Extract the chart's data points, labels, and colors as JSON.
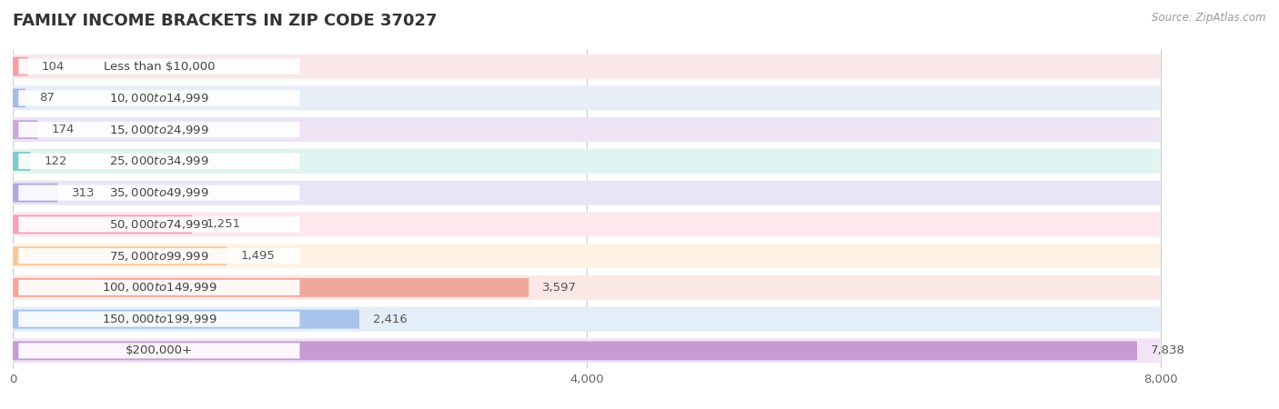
{
  "title": "FAMILY INCOME BRACKETS IN ZIP CODE 37027",
  "source": "Source: ZipAtlas.com",
  "categories": [
    "Less than $10,000",
    "$10,000 to $14,999",
    "$15,000 to $24,999",
    "$25,000 to $34,999",
    "$35,000 to $49,999",
    "$50,000 to $74,999",
    "$75,000 to $99,999",
    "$100,000 to $149,999",
    "$150,000 to $199,999",
    "$200,000+"
  ],
  "values": [
    104,
    87,
    174,
    122,
    313,
    1251,
    1495,
    3597,
    2416,
    7838
  ],
  "bar_colors": [
    "#F2A0A4",
    "#A8BAE8",
    "#C8AADC",
    "#80CCCA",
    "#B0AADC",
    "#F2A0BC",
    "#F8C89A",
    "#F0A89C",
    "#A8C4EC",
    "#C89AD4"
  ],
  "background_colors": [
    "#FAE8EA",
    "#E8EEF8",
    "#EEE4F6",
    "#E0F4F2",
    "#E8E6F6",
    "#FDE8EE",
    "#FEF2E4",
    "#FAE8E6",
    "#E4EEF8",
    "#F0E4F6"
  ],
  "xlim_data": 8000,
  "xticks": [
    0,
    4000,
    8000
  ],
  "title_fontsize": 13,
  "label_fontsize": 9.5,
  "value_fontsize": 9.5,
  "plot_bg_color": "#ffffff"
}
